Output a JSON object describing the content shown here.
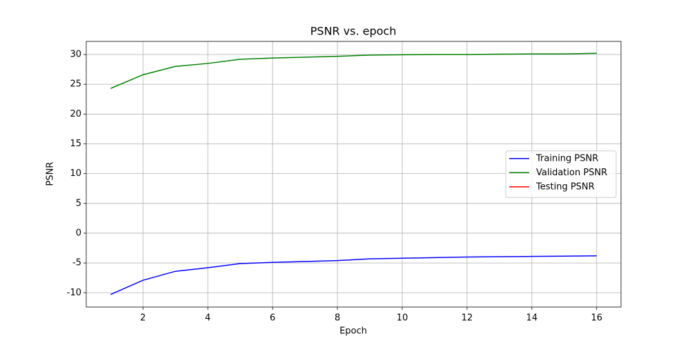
{
  "chart_data": {
    "type": "line",
    "title": "PSNR vs. epoch",
    "xlabel": "Epoch",
    "ylabel": "PSNR",
    "x": [
      1,
      2,
      3,
      4,
      5,
      6,
      7,
      8,
      9,
      10,
      11,
      12,
      13,
      14,
      15,
      16
    ],
    "series": [
      {
        "name": "Training PSNR",
        "color": "#0000ff",
        "values": [
          -10.3,
          -7.9,
          -6.4,
          -5.8,
          -5.1,
          -4.9,
          -4.75,
          -4.6,
          -4.3,
          -4.2,
          -4.1,
          -4.0,
          -3.95,
          -3.9,
          -3.85,
          -3.8
        ]
      },
      {
        "name": "Validation PSNR",
        "color": "#008000",
        "values": [
          24.3,
          26.6,
          28.0,
          28.5,
          29.2,
          29.4,
          29.55,
          29.7,
          29.9,
          29.95,
          30.0,
          30.0,
          30.05,
          30.1,
          30.1,
          30.2
        ]
      },
      {
        "name": "Testing PSNR",
        "color": "#ff0000",
        "values": [
          null,
          null,
          null,
          null,
          null,
          null,
          null,
          null,
          null,
          null,
          null,
          null,
          null,
          null,
          null,
          null
        ]
      }
    ],
    "xlim": [
      0.25,
      16.75
    ],
    "ylim": [
      -12.4,
      32.2
    ],
    "xticks": [
      2,
      4,
      6,
      8,
      10,
      12,
      14,
      16
    ],
    "yticks": [
      -10,
      -5,
      0,
      5,
      10,
      15,
      20,
      25,
      30
    ],
    "grid": true,
    "legend": "center right"
  }
}
